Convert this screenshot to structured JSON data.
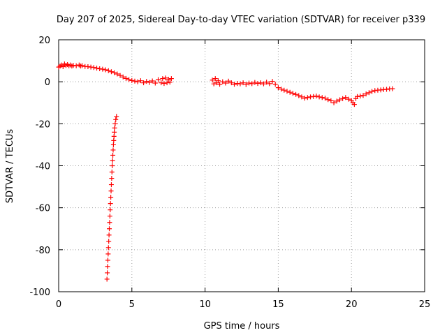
{
  "chart_data": {
    "type": "scatter",
    "title": "Day 207 of 2025, Sidereal Day-to-day VTEC variation (SDTVAR) for receiver p339",
    "xlabel": "GPS time / hours",
    "ylabel": "SDTVAR / TECUs",
    "xlim": [
      0,
      25
    ],
    "ylim": [
      -100,
      20
    ],
    "xticks": [
      0,
      5,
      10,
      15,
      20,
      25
    ],
    "yticks": [
      -100,
      -80,
      -60,
      -40,
      -20,
      0,
      20
    ],
    "grid": true,
    "marker": "+",
    "color": "#ff0000",
    "series": [
      {
        "name": "SDTVAR",
        "points": [
          [
            0.0,
            7.0
          ],
          [
            0.1,
            7.5
          ],
          [
            0.2,
            8.0
          ],
          [
            0.3,
            7.2
          ],
          [
            0.4,
            8.5
          ],
          [
            0.5,
            7.8
          ],
          [
            0.6,
            8.2
          ],
          [
            0.7,
            7.6
          ],
          [
            0.8,
            8.0
          ],
          [
            0.9,
            7.5
          ],
          [
            1.0,
            7.8
          ],
          [
            1.2,
            7.6
          ],
          [
            1.4,
            8.0
          ],
          [
            1.5,
            7.5
          ],
          [
            1.6,
            7.7
          ],
          [
            1.8,
            7.3
          ],
          [
            2.0,
            7.2
          ],
          [
            2.2,
            7.0
          ],
          [
            2.4,
            6.8
          ],
          [
            2.6,
            6.5
          ],
          [
            2.8,
            6.2
          ],
          [
            3.0,
            6.0
          ],
          [
            3.2,
            5.7
          ],
          [
            3.4,
            5.3
          ],
          [
            3.6,
            4.8
          ],
          [
            3.8,
            4.3
          ],
          [
            4.0,
            3.7
          ],
          [
            4.2,
            3.0
          ],
          [
            4.4,
            2.3
          ],
          [
            4.6,
            1.6
          ],
          [
            4.8,
            1.0
          ],
          [
            5.0,
            0.6
          ],
          [
            5.2,
            0.3
          ],
          [
            5.4,
            0.0
          ],
          [
            5.6,
            0.5
          ],
          [
            5.8,
            -0.5
          ],
          [
            6.0,
            0.2
          ],
          [
            6.2,
            -0.3
          ],
          [
            6.4,
            0.4
          ],
          [
            6.6,
            -0.6
          ],
          [
            6.8,
            1.0
          ],
          [
            7.0,
            -0.5
          ],
          [
            7.1,
            1.5
          ],
          [
            7.2,
            -0.8
          ],
          [
            7.3,
            1.8
          ],
          [
            7.4,
            -0.5
          ],
          [
            7.5,
            1.2
          ],
          [
            7.6,
            -0.2
          ],
          [
            7.7,
            1.5
          ],
          [
            10.5,
            0.8
          ],
          [
            10.6,
            -1.0
          ],
          [
            10.7,
            1.5
          ],
          [
            10.8,
            -0.5
          ],
          [
            10.9,
            0.5
          ],
          [
            11.0,
            -1.2
          ],
          [
            11.2,
            0.0
          ],
          [
            11.4,
            -0.6
          ],
          [
            11.6,
            0.3
          ],
          [
            11.8,
            -0.5
          ],
          [
            12.0,
            -1.2
          ],
          [
            12.2,
            -0.8
          ],
          [
            12.4,
            -1.0
          ],
          [
            12.6,
            -0.5
          ],
          [
            12.8,
            -1.3
          ],
          [
            13.0,
            -0.6
          ],
          [
            13.2,
            -0.9
          ],
          [
            13.4,
            -0.3
          ],
          [
            13.6,
            -0.8
          ],
          [
            13.8,
            -0.5
          ],
          [
            14.0,
            -1.0
          ],
          [
            14.2,
            -0.2
          ],
          [
            14.4,
            -0.9
          ],
          [
            14.6,
            0.2
          ],
          [
            14.8,
            -1.2
          ],
          [
            15.0,
            -2.8
          ],
          [
            15.2,
            -3.5
          ],
          [
            15.4,
            -4.0
          ],
          [
            15.6,
            -4.5
          ],
          [
            15.8,
            -5.0
          ],
          [
            16.0,
            -5.5
          ],
          [
            16.2,
            -6.0
          ],
          [
            16.4,
            -6.6
          ],
          [
            16.6,
            -7.2
          ],
          [
            16.8,
            -7.8
          ],
          [
            17.0,
            -7.5
          ],
          [
            17.2,
            -7.2
          ],
          [
            17.4,
            -7.0
          ],
          [
            17.6,
            -6.8
          ],
          [
            17.8,
            -7.2
          ],
          [
            18.0,
            -7.5
          ],
          [
            18.2,
            -7.8
          ],
          [
            18.4,
            -8.5
          ],
          [
            18.6,
            -9.0
          ],
          [
            18.8,
            -10.0
          ],
          [
            19.0,
            -9.2
          ],
          [
            19.2,
            -8.6
          ],
          [
            19.4,
            -8.0
          ],
          [
            19.6,
            -7.5
          ],
          [
            19.8,
            -8.3
          ],
          [
            20.0,
            -9.0
          ],
          [
            20.1,
            -10.0
          ],
          [
            20.2,
            -10.8
          ],
          [
            20.3,
            -8.0
          ],
          [
            20.4,
            -7.0
          ],
          [
            20.6,
            -6.8
          ],
          [
            20.8,
            -6.5
          ],
          [
            21.0,
            -5.8
          ],
          [
            21.2,
            -5.2
          ],
          [
            21.4,
            -4.6
          ],
          [
            21.6,
            -4.2
          ],
          [
            21.8,
            -4.0
          ],
          [
            22.0,
            -3.9
          ],
          [
            22.2,
            -3.7
          ],
          [
            22.4,
            -3.6
          ],
          [
            22.6,
            -3.4
          ],
          [
            22.8,
            -3.3
          ],
          [
            3.3,
            -94.0
          ],
          [
            3.32,
            -91.0
          ],
          [
            3.34,
            -88.0
          ],
          [
            3.36,
            -85.0
          ],
          [
            3.38,
            -82.0
          ],
          [
            3.4,
            -79.0
          ],
          [
            3.42,
            -76.0
          ],
          [
            3.44,
            -73.0
          ],
          [
            3.46,
            -70.0
          ],
          [
            3.48,
            -67.0
          ],
          [
            3.5,
            -64.0
          ],
          [
            3.52,
            -61.0
          ],
          [
            3.54,
            -58.0
          ],
          [
            3.56,
            -55.0
          ],
          [
            3.58,
            -52.0
          ],
          [
            3.6,
            -49.0
          ],
          [
            3.62,
            -46.0
          ],
          [
            3.64,
            -43.0
          ],
          [
            3.66,
            -40.0
          ],
          [
            3.68,
            -37.5
          ],
          [
            3.7,
            -35.0
          ],
          [
            3.72,
            -32.5
          ],
          [
            3.74,
            -30.0
          ],
          [
            3.76,
            -28.0
          ],
          [
            3.78,
            -26.0
          ],
          [
            3.8,
            -24.0
          ],
          [
            3.82,
            -22.0
          ],
          [
            3.86,
            -20.0
          ],
          [
            3.9,
            -18.0
          ],
          [
            3.95,
            -16.5
          ]
        ]
      }
    ]
  }
}
